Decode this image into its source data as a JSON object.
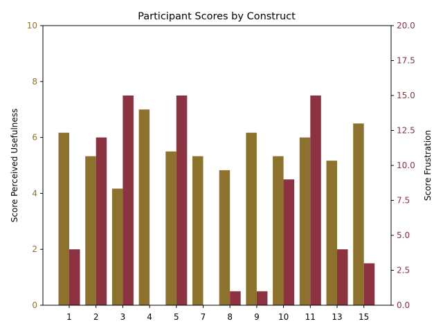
{
  "chart_data": {
    "type": "bar",
    "title": "Participant Scores by Construct",
    "xlabel": "",
    "categories": [
      "1",
      "2",
      "3",
      "4",
      "5",
      "7",
      "8",
      "9",
      "10",
      "11",
      "13",
      "15"
    ],
    "series": [
      {
        "name": "Perceived Usefulness",
        "axis": "left",
        "color": "#8c722c",
        "values": [
          6.17,
          5.33,
          4.17,
          7.0,
          5.5,
          5.33,
          4.83,
          6.17,
          5.33,
          6.0,
          5.17,
          6.5
        ]
      },
      {
        "name": "Frustration",
        "axis": "right",
        "color": "#8c3241",
        "values": [
          4.0,
          12.0,
          15.0,
          0.0,
          15.0,
          0.0,
          1.0,
          1.0,
          9.0,
          15.0,
          4.0,
          3.0
        ]
      }
    ],
    "y_left": {
      "label": "Score Perceived Usefulness",
      "ylim": [
        0,
        10
      ],
      "ticks": [
        "0",
        "2",
        "4",
        "6",
        "8",
        "10"
      ],
      "color": "#8c722c"
    },
    "y_right": {
      "label": "Score Frustration",
      "ylim": [
        0,
        20
      ],
      "ticks": [
        "0.0",
        "2.5",
        "5.0",
        "7.5",
        "10.0",
        "12.5",
        "15.0",
        "17.5",
        "20.0"
      ],
      "color": "#8c3241"
    },
    "grid": false,
    "legend": "none"
  }
}
